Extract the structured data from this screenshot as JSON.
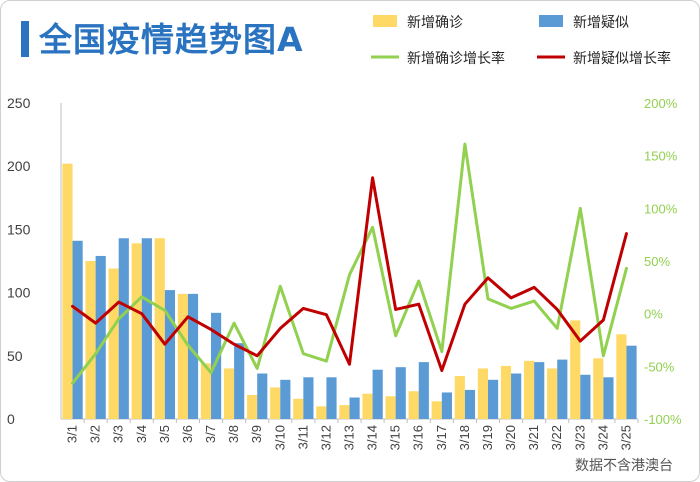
{
  "title": "全国疫情趋势图A",
  "source": "数据不含港澳台",
  "colors": {
    "confirmed_bar": "#ffd966",
    "suspected_bar": "#5b9bd5",
    "confirmed_rate": "#92d050",
    "suspected_rate": "#c00000",
    "title": "#2a73c0"
  },
  "chart_data": {
    "type": "bar",
    "categories": [
      "3/1",
      "3/2",
      "3/3",
      "3/4",
      "3/5",
      "3/6",
      "3/7",
      "3/8",
      "3/9",
      "3/10",
      "3/11",
      "3/12",
      "3/13",
      "3/14",
      "3/15",
      "3/16",
      "3/17",
      "3/18",
      "3/19",
      "3/20",
      "3/21",
      "3/22",
      "3/23",
      "3/24",
      "3/25"
    ],
    "series": [
      {
        "name": "新增确诊",
        "kind": "bar",
        "axis": "left",
        "values": [
          202,
          125,
          119,
          139,
          143,
          99,
          44,
          40,
          19,
          25,
          16,
          10,
          11,
          20,
          18,
          22,
          14,
          34,
          40,
          42,
          46,
          40,
          78,
          48,
          67
        ]
      },
      {
        "name": "新增疑似",
        "kind": "bar",
        "axis": "left",
        "values": [
          141,
          129,
          143,
          143,
          102,
          99,
          84,
          60,
          36,
          31,
          33,
          33,
          17,
          39,
          41,
          45,
          21,
          23,
          31,
          36,
          45,
          47,
          35,
          33,
          58
        ]
      },
      {
        "name": "新增确诊增长率",
        "kind": "line",
        "axis": "right",
        "values": [
          -66,
          -38,
          -5,
          16,
          3,
          -30,
          -56,
          -9,
          -52,
          26,
          -38,
          -45,
          37,
          82,
          -21,
          31,
          -36,
          161,
          14,
          5,
          12,
          -14,
          100,
          -40,
          43
        ]
      },
      {
        "name": "新增疑似增长率",
        "kind": "line",
        "axis": "right",
        "values": [
          7,
          -9,
          11,
          0,
          -29,
          -3,
          -15,
          -29,
          -40,
          -14,
          5,
          -1,
          -48,
          129,
          4,
          9,
          -54,
          9,
          34,
          15,
          25,
          4,
          -26,
          -6,
          76
        ]
      }
    ],
    "ylim_left": [
      0,
      250
    ],
    "yticks_left": [
      "0",
      "50",
      "100",
      "150",
      "200",
      "250"
    ],
    "ylim_right": [
      -100,
      200
    ],
    "yticks_right": [
      "-100%",
      "-50%",
      "0%",
      "50%",
      "100%",
      "150%",
      "200%"
    ],
    "grid": false,
    "legend_position": "top-right"
  }
}
